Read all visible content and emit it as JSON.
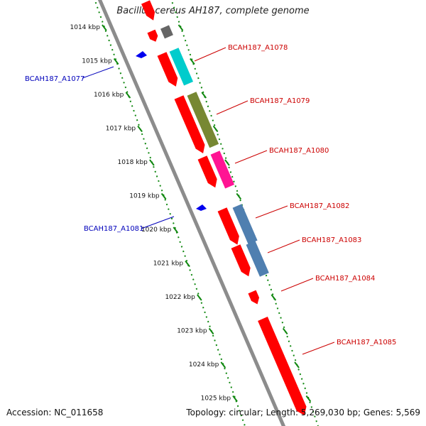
{
  "title": "Bacillus cereus AH187, complete genome",
  "accession": "Accession: NC_011658",
  "summary": "Topology: circular; Length: 5,269,030 bp; Genes: 5,569",
  "colors": {
    "backbone": "#8c8c8c",
    "ticks": "#118811",
    "gene_forward": "#ff0000",
    "gene_reverse": "#0000ee",
    "label_forward": "#cc0000",
    "label_reverse": "#0000bb"
  },
  "scale_labels": [
    "1014 kbp",
    "1015 kbp",
    "1016 kbp",
    "1017 kbp",
    "1018 kbp",
    "1019 kbp",
    "1020 kbp",
    "1021 kbp",
    "1022 kbp",
    "1023 kbp",
    "1024 kbp",
    "1025 kbp"
  ],
  "gene_labels": [
    {
      "name": "BCAH187_A1077",
      "strand": "reverse"
    },
    {
      "name": "BCAH187_A1078",
      "strand": "forward"
    },
    {
      "name": "BCAH187_A1079",
      "strand": "forward"
    },
    {
      "name": "BCAH187_A1080",
      "strand": "forward"
    },
    {
      "name": "BCAH187_A1081",
      "strand": "reverse"
    },
    {
      "name": "BCAH187_A1082",
      "strand": "forward"
    },
    {
      "name": "BCAH187_A1083",
      "strand": "forward"
    },
    {
      "name": "BCAH187_A1084",
      "strand": "forward"
    },
    {
      "name": "BCAH187_A1085",
      "strand": "forward"
    }
  ],
  "feature_colors": [
    "#ff0000",
    "#666666",
    "#00cccc",
    "#778833",
    "#ff1493",
    "#4f7fb0"
  ]
}
